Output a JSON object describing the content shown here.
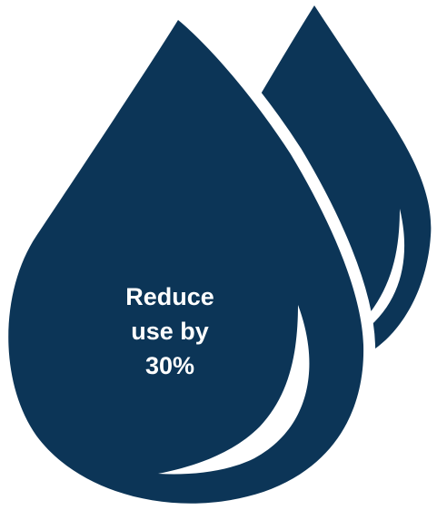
{
  "colors": {
    "drop_fill": "#0c3557",
    "background": "#ffffff",
    "label_text": "#ffffff",
    "highlight": "#ffffff"
  },
  "graphic": {
    "front_drop_icon": "water-drop-icon",
    "back_drop_icon": "water-drop-icon",
    "label_line_1": "Reduce",
    "label_line_2": "use by",
    "label_line_3": "30%"
  }
}
